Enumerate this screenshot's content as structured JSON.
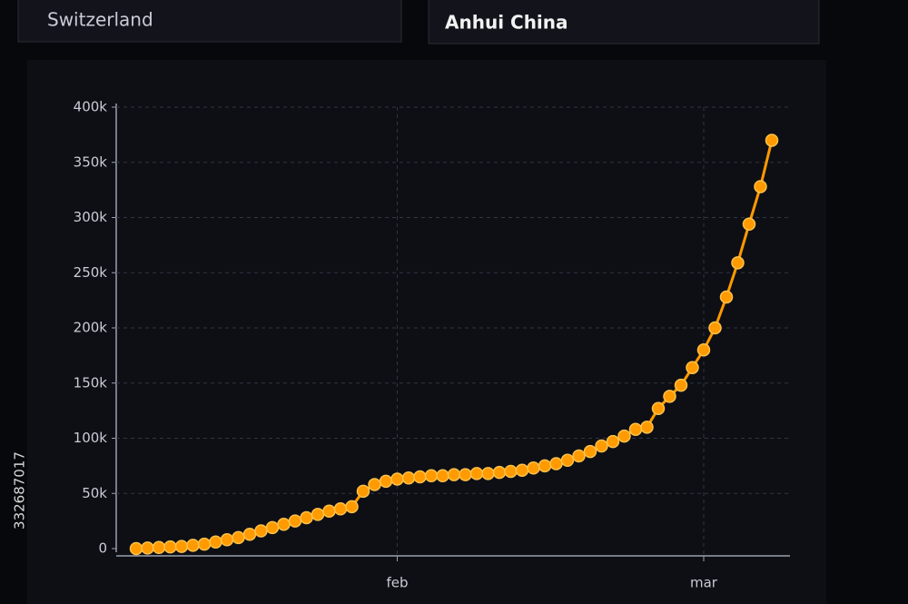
{
  "panels": [
    {
      "label": "Switzerland"
    },
    {
      "label": "Anhui China"
    }
  ],
  "watermark_id": "332687017",
  "chart_data": {
    "type": "line",
    "categories": [
      null,
      null,
      null,
      null,
      null,
      null,
      null,
      null,
      null,
      null,
      null,
      null,
      null,
      null,
      null,
      null,
      null,
      null,
      null,
      null,
      null,
      null,
      null,
      "feb",
      null,
      null,
      null,
      null,
      null,
      null,
      null,
      null,
      null,
      null,
      null,
      null,
      null,
      null,
      null,
      null,
      null,
      null,
      null,
      null,
      null,
      null,
      null,
      null,
      null,
      null,
      "mar",
      null,
      null,
      null,
      null,
      null,
      null
    ],
    "series": [
      {
        "color": "#ff9a00",
        "values": [
          0,
          500,
          1000,
          1500,
          2000,
          3000,
          4000,
          6000,
          8000,
          10000,
          13000,
          16000,
          19000,
          22000,
          25000,
          28000,
          31000,
          34000,
          36000,
          38000,
          52000,
          58000,
          61000,
          63000,
          64000,
          65000,
          66000,
          66000,
          67000,
          67000,
          68000,
          68000,
          69000,
          70000,
          71000,
          73000,
          75000,
          77000,
          80000,
          84000,
          88000,
          93000,
          97000,
          102000,
          108000,
          110000,
          127000,
          138000,
          148000,
          164000,
          180000,
          200000,
          228000,
          259000,
          294000,
          328000,
          370000
        ]
      }
    ],
    "ylim": [
      0,
      400000
    ],
    "yticks": [
      0,
      {
        "value": 50000,
        "label": "50k"
      },
      {
        "value": 100000,
        "label": "100k"
      },
      {
        "value": 150000,
        "label": "150k"
      },
      {
        "value": 200000,
        "label": "200k"
      },
      {
        "value": 250000,
        "label": "250k"
      },
      {
        "value": 300000,
        "label": "300k"
      },
      {
        "value": 350000,
        "label": "350k"
      },
      {
        "value": 400000,
        "label": "400k"
      }
    ],
    "grid": true
  }
}
